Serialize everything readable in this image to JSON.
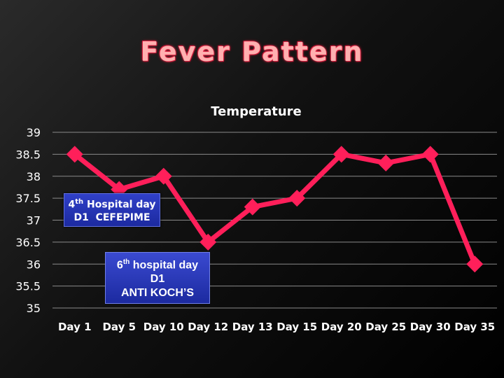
{
  "slide": {
    "title": "Fever Pattern"
  },
  "chart_data": {
    "type": "line",
    "title": "Temperature",
    "categories": [
      "Day 1",
      "Day 5",
      "Day 10",
      "Day 12",
      "Day 13",
      "Day 15",
      "Day 20",
      "Day 25",
      "Day 30",
      "Day 35"
    ],
    "series": [
      {
        "values": [
          38.5,
          37.7,
          38.0,
          36.5,
          37.3,
          37.5,
          38.5,
          38.3,
          38.5,
          36.0
        ]
      }
    ],
    "ylim": [
      35,
      39
    ],
    "yticks": [
      "39",
      "38.5",
      "38",
      "37.5",
      "37",
      "36.5",
      "36",
      "35.5",
      "35"
    ],
    "grid": true,
    "line_color": "#ff1f5a",
    "annotations": [
      {
        "sup": "th",
        "line1_rest": "Hospital day",
        "line1_num": "4",
        "line2": "D1  CEFEPIME"
      },
      {
        "sup": "th",
        "line1_rest": "hospital day",
        "line1_num": "6",
        "line2": "D1",
        "line3": "ANTI KOCH’S"
      }
    ]
  }
}
